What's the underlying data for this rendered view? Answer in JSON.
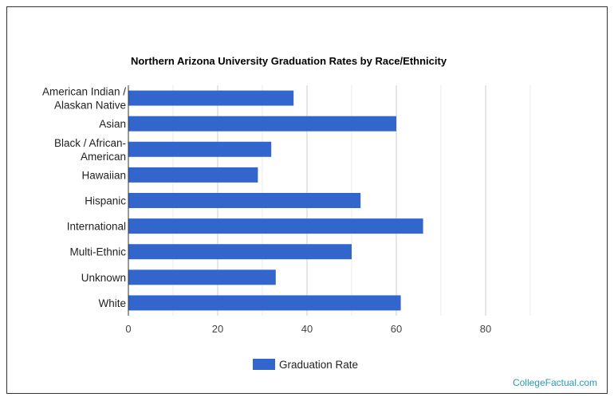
{
  "chart_data": {
    "type": "bar",
    "orientation": "horizontal",
    "title": "Northern Arizona University Graduation Rates by Race/Ethnicity",
    "categories": [
      [
        "American Indian /",
        "Alaskan Native"
      ],
      [
        "Asian"
      ],
      [
        "Black / African-",
        "American"
      ],
      [
        "Hawaiian"
      ],
      [
        "Hispanic"
      ],
      [
        "International"
      ],
      [
        "Multi-Ethnic"
      ],
      [
        "Unknown"
      ],
      [
        "White"
      ]
    ],
    "series": [
      {
        "name": "Graduation Rate",
        "color": "#3366cc",
        "values": [
          37,
          60,
          32,
          29,
          52,
          66,
          50,
          33,
          61
        ]
      }
    ],
    "xlim": [
      0,
      90
    ],
    "xticks": [
      0,
      20,
      40,
      60,
      80
    ],
    "grid": true,
    "legend": "bottom",
    "xlabel": "",
    "ylabel": ""
  },
  "credit": "CollegeFactual.com"
}
